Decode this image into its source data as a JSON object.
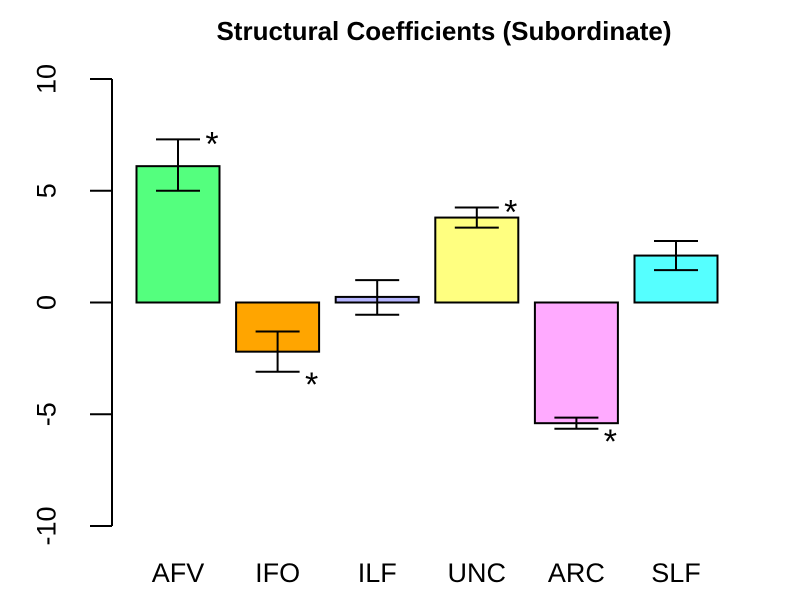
{
  "chart_data": {
    "type": "bar",
    "title": "Structural Coefficients (Subordinate)",
    "xlabel": "",
    "ylabel": "",
    "ylim": [
      -10,
      10
    ],
    "yticks": [
      -10,
      -5,
      0,
      5,
      10
    ],
    "ytick_labels": [
      "-10",
      "-5",
      "0",
      "5",
      "10"
    ],
    "grid": false,
    "categories": [
      "AFV",
      "IFO",
      "ILF",
      "UNC",
      "ARC",
      "SLF"
    ],
    "values": [
      6.1,
      -2.2,
      0.25,
      3.8,
      -5.4,
      2.1
    ],
    "error_low": [
      5.0,
      -3.1,
      -0.55,
      3.35,
      -5.65,
      1.45
    ],
    "error_high": [
      7.3,
      -1.3,
      1.0,
      4.25,
      -5.15,
      2.75
    ],
    "significant": [
      true,
      true,
      false,
      true,
      true,
      false
    ],
    "significance_marker": "*",
    "colors": [
      "#54FF7E",
      "#FFA500",
      "#B5B5FF",
      "#FFFF80",
      "#FFAAFF",
      "#55FFFF"
    ]
  }
}
